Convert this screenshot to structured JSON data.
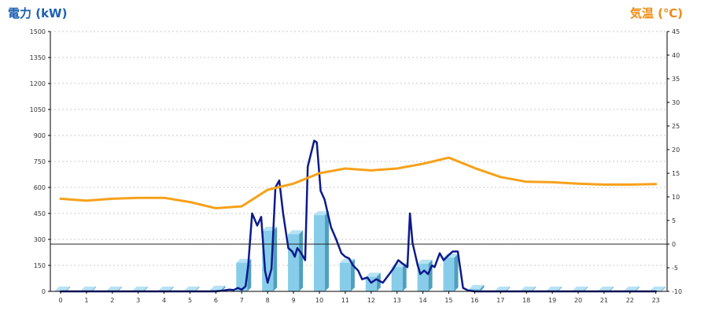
{
  "chart_data": {
    "type": "bar+line",
    "left_axis": {
      "title": "電力 (kW)",
      "range": [
        0,
        1500
      ],
      "ticks": [
        "0",
        "150",
        "300",
        "450",
        "600",
        "750",
        "900",
        "1050",
        "1200",
        "1350",
        "1500"
      ]
    },
    "right_axis": {
      "title": "気温 (℃)",
      "range": [
        -10,
        45
      ],
      "ticks": [
        "-10",
        "-5",
        "0",
        "5",
        "10",
        "15",
        "20",
        "25",
        "30",
        "35",
        "40",
        "45"
      ]
    },
    "x_ticks": [
      "0",
      "1",
      "2",
      "3",
      "4",
      "5",
      "6",
      "7",
      "8",
      "9",
      "10",
      "11",
      "12",
      "13",
      "14",
      "15",
      "16",
      "17",
      "18",
      "19",
      "20",
      "21",
      "22",
      "23"
    ],
    "grid": true,
    "zero_temp_line": true,
    "series": [
      {
        "kind": "bar",
        "axis": "left",
        "color": "#87cdea",
        "values": [
          5,
          5,
          5,
          5,
          5,
          5,
          10,
          165,
          350,
          330,
          440,
          165,
          85,
          140,
          160,
          195,
          15,
          5,
          5,
          5,
          5,
          5,
          5,
          5
        ]
      },
      {
        "kind": "line",
        "axis": "left",
        "color": "#0d1a8c",
        "x": [
          0,
          1,
          2,
          3,
          4,
          5,
          6,
          6.3,
          6.5,
          6.7,
          6.85,
          7,
          7.15,
          7.25,
          7.4,
          7.6,
          7.75,
          7.9,
          8.0,
          8.15,
          8.3,
          8.45,
          8.6,
          8.8,
          8.95,
          9.05,
          9.15,
          9.3,
          9.45,
          9.55,
          9.8,
          9.9,
          10.05,
          10.2,
          10.45,
          10.65,
          10.85,
          11.0,
          11.15,
          11.3,
          11.5,
          11.65,
          11.85,
          12.0,
          12.2,
          12.45,
          12.65,
          12.85,
          13.05,
          13.3,
          13.4,
          13.5,
          13.6,
          13.8,
          13.9,
          14.05,
          14.2,
          14.35,
          14.45,
          14.65,
          14.8,
          15.0,
          15.15,
          15.35,
          15.55,
          15.75,
          16,
          17,
          18,
          19,
          20,
          21,
          22,
          23
        ],
        "values": [
          0,
          0,
          0,
          0,
          0,
          0,
          0,
          5,
          10,
          8,
          20,
          10,
          30,
          150,
          450,
          380,
          430,
          120,
          50,
          130,
          600,
          640,
          450,
          250,
          230,
          200,
          250,
          220,
          180,
          720,
          870,
          860,
          580,
          530,
          370,
          300,
          220,
          200,
          190,
          150,
          120,
          70,
          80,
          50,
          70,
          50,
          90,
          130,
          180,
          150,
          140,
          450,
          280,
          150,
          100,
          120,
          100,
          150,
          140,
          220,
          180,
          210,
          230,
          230,
          20,
          5,
          0,
          0,
          0,
          0,
          0,
          0,
          0,
          0
        ]
      },
      {
        "kind": "line",
        "axis": "right",
        "color": "#f6a11a",
        "x": [
          0,
          0.5,
          1,
          1.5,
          2,
          3,
          4,
          5,
          6,
          7,
          8,
          9,
          10,
          11,
          12,
          13,
          14,
          15,
          16,
          17,
          18,
          19,
          20,
          21,
          22,
          23
        ],
        "values": [
          9.6,
          9.4,
          9.2,
          9.4,
          9.6,
          9.8,
          9.8,
          8.9,
          7.6,
          8.0,
          11.5,
          12.8,
          15.0,
          16.0,
          15.6,
          16.0,
          17.0,
          18.3,
          16.1,
          14.2,
          13.2,
          13.1,
          12.8,
          12.6,
          12.6,
          12.7
        ]
      }
    ]
  }
}
